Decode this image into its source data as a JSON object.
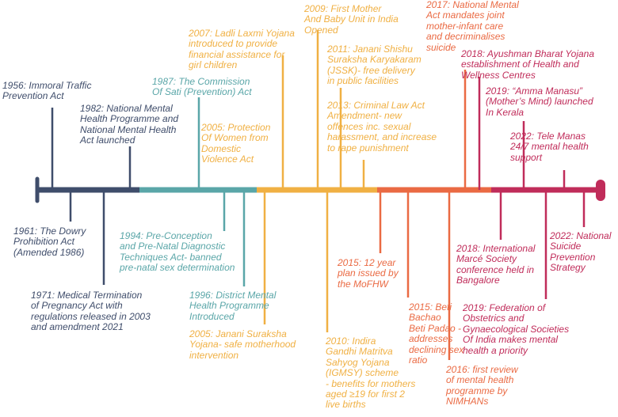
{
  "colors": {
    "navy": "#3f4d6b",
    "teal": "#5aa6a8",
    "gold": "#f0b043",
    "orange": "#ea6a43",
    "crimson": "#c02c5a"
  },
  "events": [
    {
      "id": "1956",
      "color": "navy",
      "text": "1956: Immoral Traffic\nPrevention Act"
    },
    {
      "id": "1961",
      "color": "navy",
      "text": "1961: The Dowry\nProhibition Act\n(Amended 1986)"
    },
    {
      "id": "1971",
      "color": "navy",
      "text": "1971: Medical Termination\nof Pregnancy Act with\nregulations released in 2003\nand amendment 2021"
    },
    {
      "id": "1982",
      "color": "navy",
      "text": "1982: National Mental\nHealth Programme and\nNational Mental Health\nAct launched"
    },
    {
      "id": "1987",
      "color": "teal",
      "text": "1987: The Commission\nOf Sati (Prevention) Act"
    },
    {
      "id": "1994",
      "color": "teal",
      "text": "1994: Pre-Conception\nand Pre-Natal Diagnostic\nTechniques Act- banned\npre-natal sex determination"
    },
    {
      "id": "1996",
      "color": "teal",
      "text": "1996: District Mental\nHealth Programme\nIntroduced"
    },
    {
      "id": "2005a",
      "color": "gold",
      "text": "2005: Protection\nOf Women from\nDomestic\nViolence Act"
    },
    {
      "id": "2005b",
      "color": "gold",
      "text": "2005: Janani Suraksha\nYojana- safe motherhood\nintervention"
    },
    {
      "id": "2007",
      "color": "gold",
      "text": "2007: Ladli Laxmi Yojana\nintroduced to provide\nfinancial assistance for\ngirl children"
    },
    {
      "id": "2009",
      "color": "gold",
      "text": "2009: First Mother\nAnd Baby Unit in India\nOpened"
    },
    {
      "id": "2010",
      "color": "gold",
      "text": "2010: Indira\nGandhi Matritva\nSahyog Yojana\n(IGMSY) scheme\n- benefits for mothers\naged ≥19 for first 2\nlive births"
    },
    {
      "id": "2011",
      "color": "gold",
      "text": "2011: Janani Shishu\nSuraksha Karyakaram\n(JSSK)- free delivery\nin public facilities"
    },
    {
      "id": "2013",
      "color": "gold",
      "text": "2013: Criminal Law Act\nAmendment- new\noffences inc. sexual\nharassment, and increase\nto rape punishment"
    },
    {
      "id": "2015a",
      "color": "orange",
      "text": "2015: 12 year\nplan issued by\nthe MoFHW"
    },
    {
      "id": "2015b",
      "color": "orange",
      "text": "2015: Beti\nBachao\nBeti Padao -\naddresses\ndeclining sex\nratio"
    },
    {
      "id": "2016",
      "color": "orange",
      "text": "2016: first review\nof mental health\nprogramme by\nNIMHANs"
    },
    {
      "id": "2017",
      "color": "orange",
      "text": "2017: National Mental\nAct mandates joint\nmother-infant care\nand decriminalises\nsuicide"
    },
    {
      "id": "2018a",
      "color": "crimson",
      "text": "2018: Ayushman Bharat Yojana\nestablishment of Health and\n    Wellness Centres"
    },
    {
      "id": "2018b",
      "color": "crimson",
      "text": "2018: International\nMarcé Society\nconference held in\nBangalore"
    },
    {
      "id": "2019a",
      "color": "crimson",
      "text": "2019: “Amma Manasu”\n(Mother’s Mind) launched\nIn Kerala"
    },
    {
      "id": "2019b",
      "color": "crimson",
      "text": "2019: Federation of\nObstetrics and\nGynaecological Societies\nOf India makes mental\nhealth a priority"
    },
    {
      "id": "2022a",
      "color": "crimson",
      "text": "2022: Tele Manas\n24/7 mental health\nsupport"
    },
    {
      "id": "2022b",
      "color": "crimson",
      "text": "2022: National\nSuicide\nPrevention\nStrategy"
    }
  ]
}
